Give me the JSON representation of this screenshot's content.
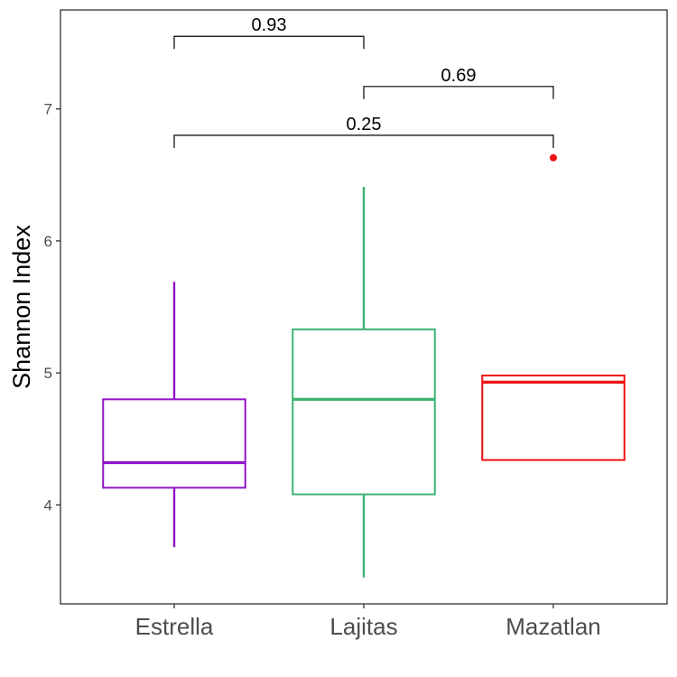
{
  "chart_data": {
    "type": "box",
    "ylabel": "Shannon Index",
    "xlabel": "",
    "ylim": [
      3.25,
      7.75
    ],
    "y_ticks": [
      4,
      5,
      6,
      7
    ],
    "y_tick_labels": [
      "4",
      "5",
      "6",
      "7"
    ],
    "categories": [
      "Estrella",
      "Lajitas",
      "Mazatlan"
    ],
    "colors": [
      "#9013c9",
      "#3cb371",
      "#ee1111"
    ],
    "boxes": [
      {
        "name": "Estrella",
        "whisker_low": 3.68,
        "q1": 4.13,
        "median": 4.32,
        "q3": 4.8,
        "whisker_high": 5.69,
        "outliers": []
      },
      {
        "name": "Lajitas",
        "whisker_low": 3.45,
        "q1": 4.08,
        "median": 4.8,
        "q3": 5.33,
        "whisker_high": 6.41,
        "outliers": []
      },
      {
        "name": "Mazatlan",
        "whisker_low": 4.34,
        "q1": 4.34,
        "median": 4.93,
        "q3": 4.98,
        "whisker_high": 4.98,
        "outliers": [
          6.63
        ]
      }
    ],
    "comparisons": [
      {
        "from": 0,
        "to": 1,
        "y": 7.55,
        "label": "0.93"
      },
      {
        "from": 1,
        "to": 2,
        "y": 7.17,
        "label": "0.69"
      },
      {
        "from": 0,
        "to": 2,
        "y": 6.8,
        "label": "0.25"
      }
    ],
    "grid": false,
    "legend": "none"
  }
}
